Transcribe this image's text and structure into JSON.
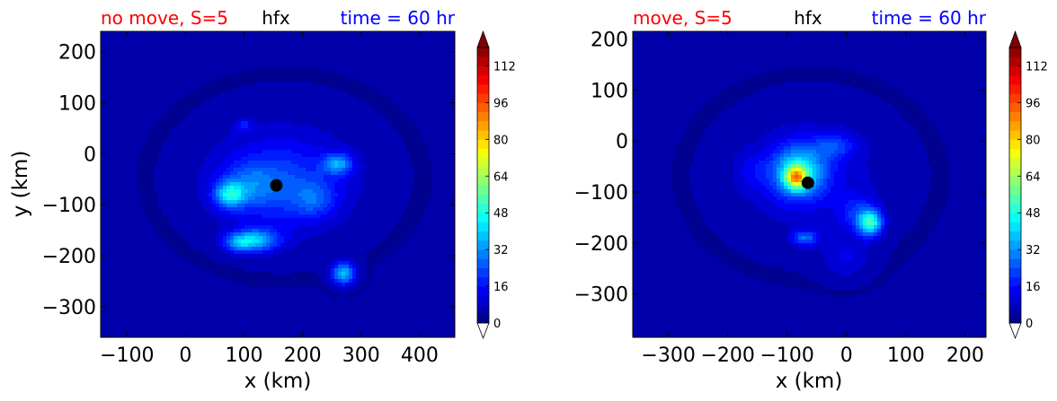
{
  "chart_data": [
    {
      "type": "heatmap",
      "title_left": "no move, S=5",
      "title_center": "hfx",
      "title_right": "time = 60 hr",
      "xlabel": "x (km)",
      "ylabel": "y (km)",
      "xlim": [
        -145,
        460
      ],
      "ylim": [
        -360,
        240
      ],
      "xticks": [
        -100,
        0,
        100,
        200,
        300,
        400
      ],
      "xtick_labels": [
        "−100",
        "0",
        "100",
        "200",
        "300",
        "400"
      ],
      "yticks": [
        200,
        100,
        0,
        -100,
        -200,
        -300
      ],
      "ytick_labels": [
        "200",
        "100",
        "0",
        "−100",
        "−200",
        "−300"
      ],
      "center_marker": {
        "x": 155,
        "y": -62
      },
      "blobs": [
        {
          "x": 155,
          "y": -62,
          "sx": 95,
          "sy": 75,
          "v": 14
        },
        {
          "x": 170,
          "y": -45,
          "sx": 150,
          "sy": 130,
          "v": 8
        },
        {
          "x": 110,
          "y": -60,
          "sx": 40,
          "sy": 40,
          "v": 10
        },
        {
          "x": 75,
          "y": -80,
          "sx": 25,
          "sy": 25,
          "v": 32
        },
        {
          "x": 120,
          "y": -170,
          "sx": 40,
          "sy": 22,
          "v": 30
        },
        {
          "x": 90,
          "y": -175,
          "sx": 25,
          "sy": 18,
          "v": 18
        },
        {
          "x": 260,
          "y": -20,
          "sx": 25,
          "sy": 20,
          "v": 26
        },
        {
          "x": 270,
          "y": -235,
          "sx": 20,
          "sy": 22,
          "v": 34
        },
        {
          "x": 220,
          "y": -90,
          "sx": 35,
          "sy": 35,
          "v": 12
        },
        {
          "x": 100,
          "y": 55,
          "sx": 15,
          "sy": 12,
          "v": 12
        }
      ]
    },
    {
      "type": "heatmap",
      "title_left": "move, S=5",
      "title_center": "hfx",
      "title_right": "time = 60 hr",
      "xlabel": "x (km)",
      "ylabel": "",
      "xlim": [
        -360,
        235
      ],
      "ylim": [
        -385,
        215
      ],
      "xticks": [
        -300,
        -200,
        -100,
        0,
        100,
        200
      ],
      "xtick_labels": [
        "−300",
        "−200",
        "−100",
        "0",
        "100",
        "200"
      ],
      "yticks": [
        200,
        100,
        0,
        -100,
        -200,
        -300
      ],
      "ytick_labels": [
        "200",
        "100",
        "0",
        "−100",
        "−200",
        "−300"
      ],
      "center_marker": {
        "x": -65,
        "y": -82
      },
      "blobs": [
        {
          "x": -60,
          "y": -70,
          "sx": 140,
          "sy": 130,
          "v": 8
        },
        {
          "x": -80,
          "y": -60,
          "sx": 45,
          "sy": 50,
          "v": 36
        },
        {
          "x": -85,
          "y": -72,
          "sx": 18,
          "sy": 22,
          "v": 50
        },
        {
          "x": 40,
          "y": -160,
          "sx": 20,
          "sy": 25,
          "v": 44
        },
        {
          "x": 15,
          "y": -140,
          "sx": 30,
          "sy": 35,
          "v": 12
        },
        {
          "x": -70,
          "y": -190,
          "sx": 20,
          "sy": 15,
          "v": 22
        },
        {
          "x": -20,
          "y": -10,
          "sx": 35,
          "sy": 25,
          "v": 14
        },
        {
          "x": 0,
          "y": -230,
          "sx": 40,
          "sy": 40,
          "v": 8
        },
        {
          "x": -160,
          "y": -60,
          "sx": 30,
          "sy": 40,
          "v": 6
        }
      ]
    }
  ],
  "colorbar": {
    "min": 0,
    "max": 120,
    "levels": 30,
    "extend": "both",
    "tick_values": [
      0,
      16,
      32,
      48,
      64,
      80,
      96,
      112
    ],
    "tick_labels": [
      "0",
      "16",
      "32",
      "48",
      "64",
      "80",
      "96",
      "112"
    ]
  },
  "colors": {
    "title_left": "#ff0000",
    "title_center": "#000000",
    "title_right": "#0000ff",
    "background_field": "#0000aa",
    "marker": "#000000"
  }
}
